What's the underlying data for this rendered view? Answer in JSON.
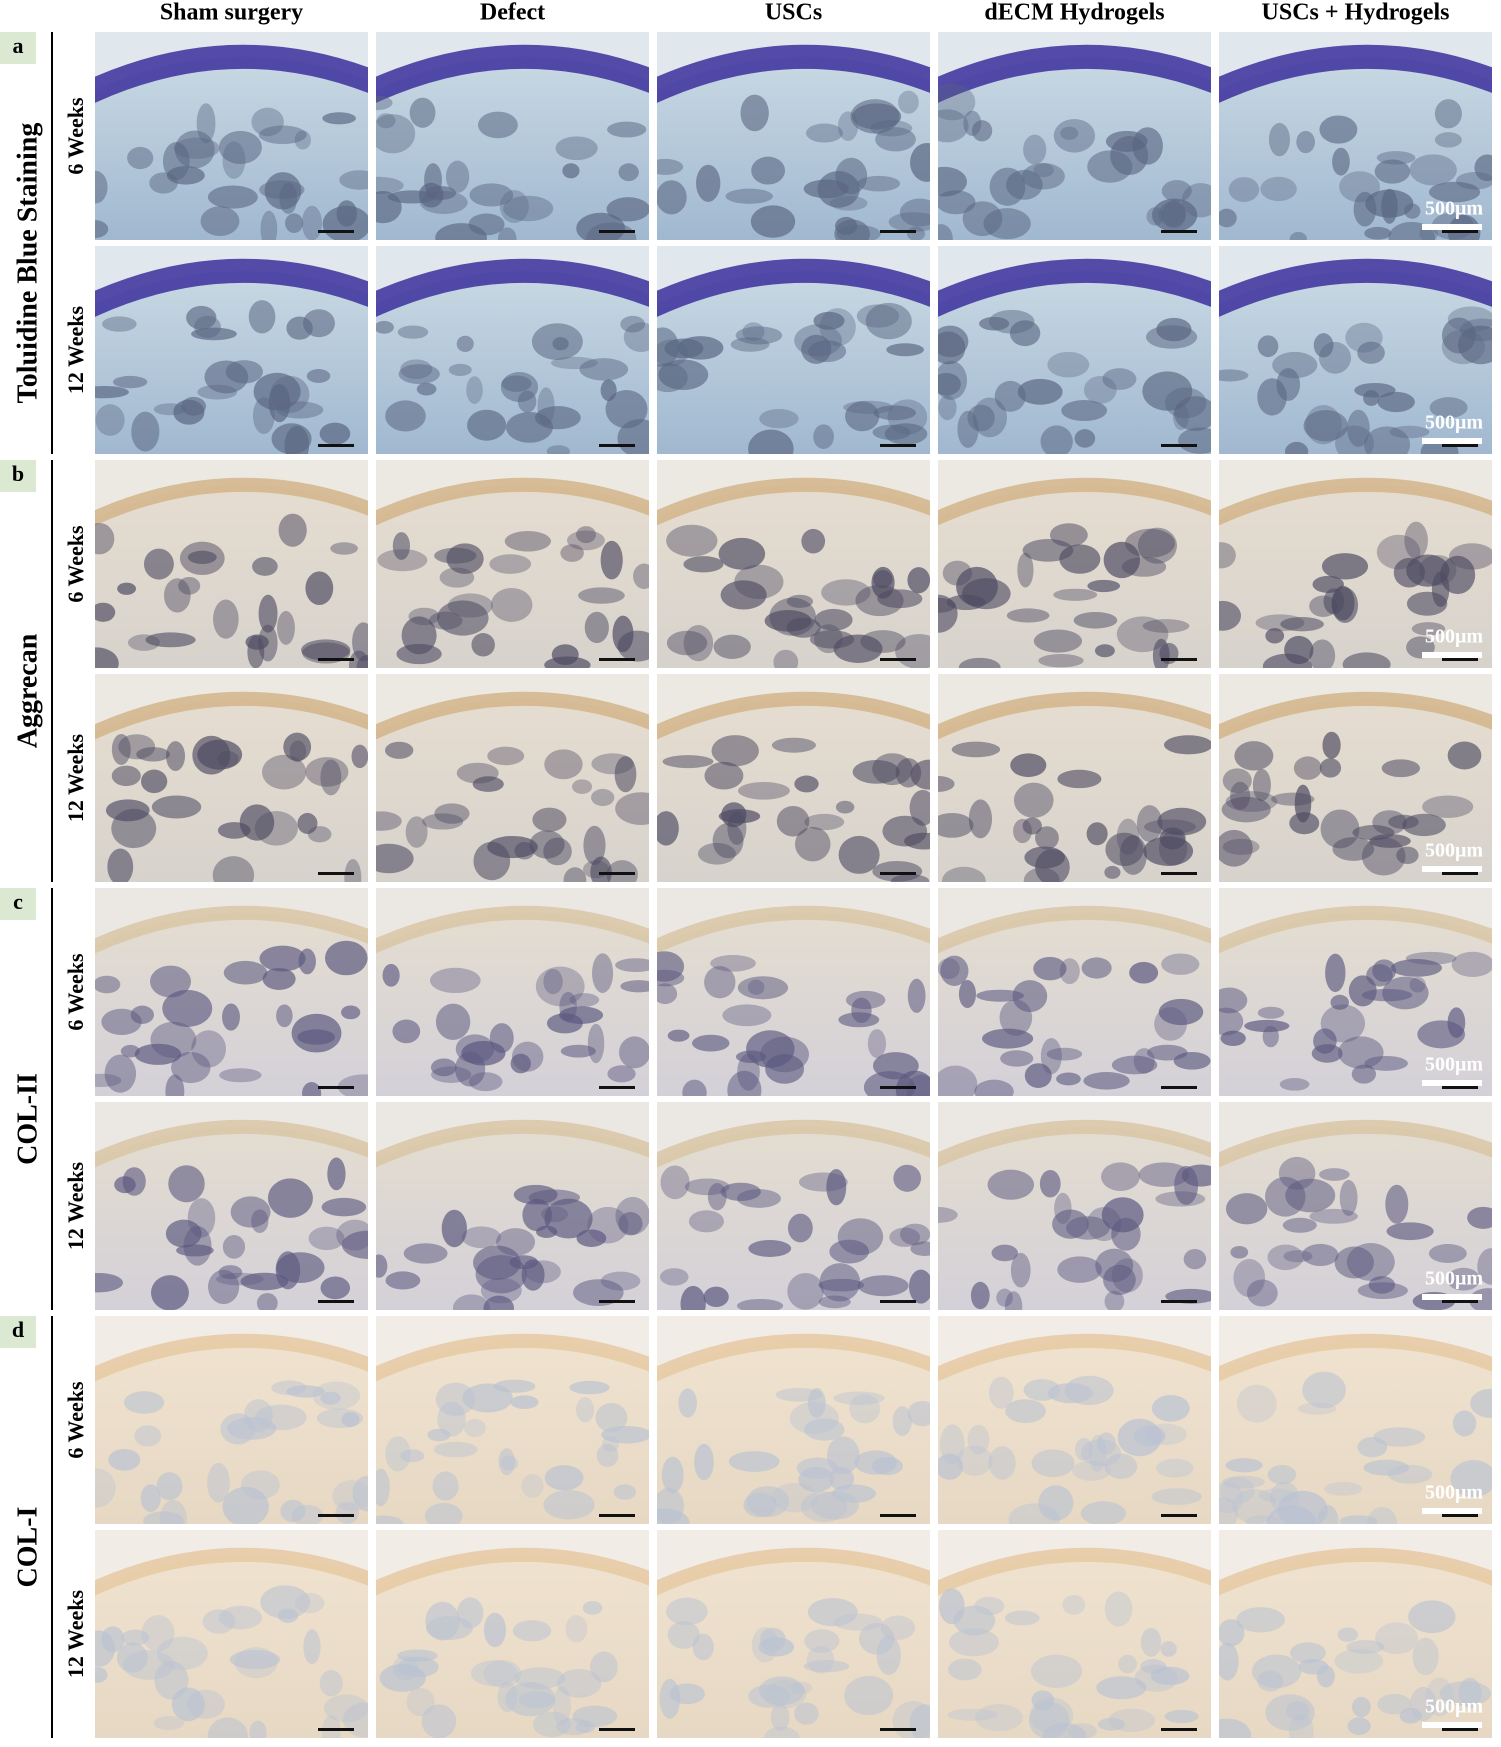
{
  "columns": [
    "Sham surgery",
    "Defect",
    "USCs",
    "dECM Hydrogels",
    "USCs + Hydrogels"
  ],
  "panels": [
    {
      "letter": "a",
      "stain": "Toluidine Blue Staining",
      "rows": [
        {
          "label": "6 Weeks",
          "scale_bar": "500μm"
        },
        {
          "label": "12 Weeks",
          "scale_bar": "500μm"
        }
      ]
    },
    {
      "letter": "b",
      "stain": "Aggrecan",
      "rows": [
        {
          "label": "6 Weeks",
          "scale_bar": "500μm"
        },
        {
          "label": "12 Weeks",
          "scale_bar": "500μm"
        }
      ]
    },
    {
      "letter": "c",
      "stain": "COL-II",
      "rows": [
        {
          "label": "6 Weeks",
          "scale_bar": "500μm"
        },
        {
          "label": "12 Weeks",
          "scale_bar": "500μm"
        }
      ]
    },
    {
      "letter": "d",
      "stain": "COL-I",
      "rows": [
        {
          "label": "6 Weeks",
          "scale_bar": "500μm"
        },
        {
          "label": "12 Weeks",
          "scale_bar": "500μm"
        }
      ]
    }
  ]
}
